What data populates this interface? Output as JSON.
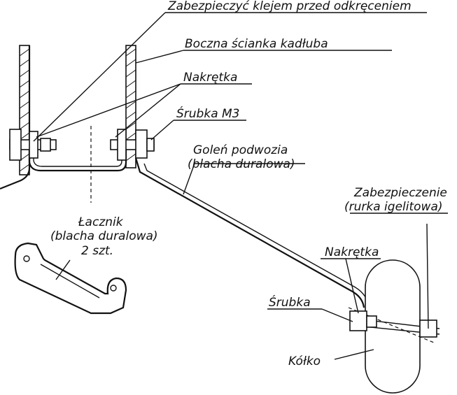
{
  "labels": {
    "glue": "Zabezpieczyć klejem przed odkręceniem",
    "side_wall": "Boczna ścianka kadłuba",
    "nut_top": "Nakrętka",
    "screw_m3": "Śrubka M3",
    "leg_line1": "Goleń podwozia",
    "leg_line2": "(blacha duralowa)",
    "lock_line1": "Zabezpieczenie",
    "lock_line2": "(rurka igelitowa)",
    "connector_line1": "Łacznik",
    "connector_line2": "(blacha duralowa)",
    "connector_line3": "2 szt.",
    "nut_wheel": "Nakrętka",
    "screw": "Śrubka",
    "wheel": "Kółko"
  }
}
